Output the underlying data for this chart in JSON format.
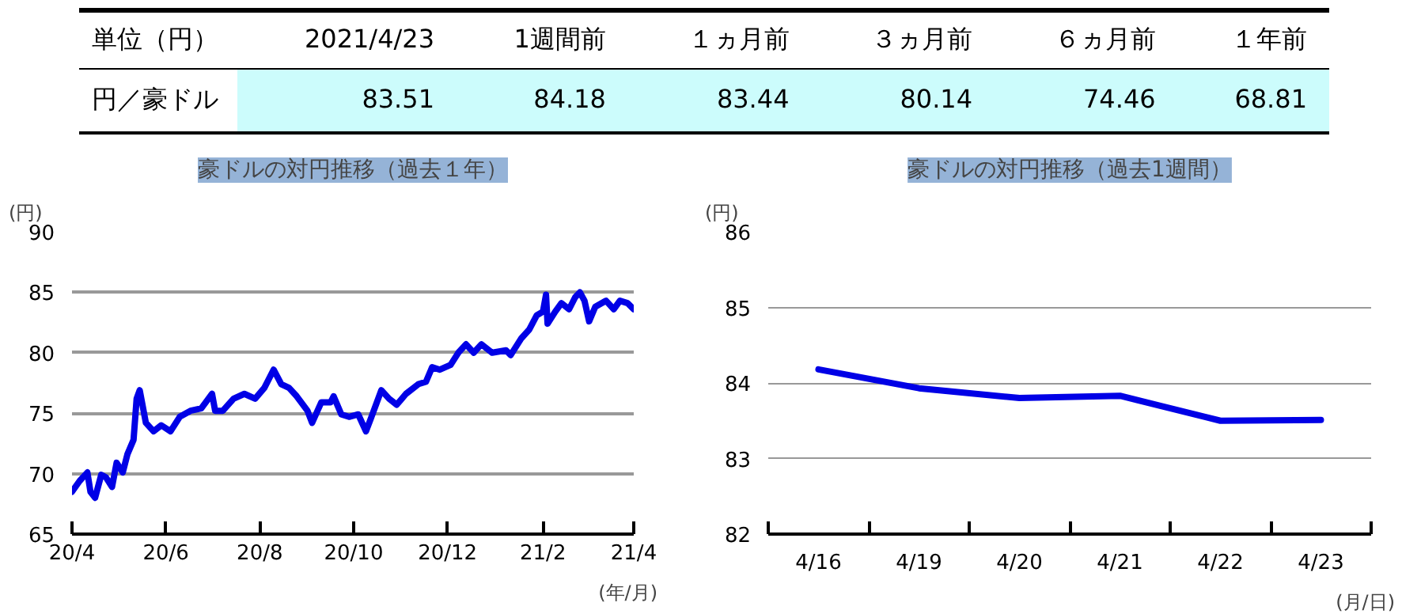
{
  "chart_data": [
    {
      "type": "other",
      "title": "単位（円）",
      "categories": [
        "2021/4/23",
        "1週間前",
        "１ヵ月前",
        "３ヵ月前",
        "６ヵ月前",
        "１年前"
      ],
      "y_categories": [
        "円／豪ドル"
      ],
      "cells": [
        [
          "83.51",
          "84.18",
          "83.44",
          "80.14",
          "74.46",
          "68.81"
        ]
      ]
    },
    {
      "type": "line",
      "title": "豪ドルの対円推移（過去１年）",
      "xlabel": "(年/月)",
      "ylabel": "(円)",
      "grid": "y",
      "xlim": [
        "2020-04-01",
        "2021-04-01"
      ],
      "ylim": [
        65,
        90
      ],
      "yticks": [
        65,
        70,
        75,
        80,
        85,
        90
      ],
      "xticks": [
        {
          "value": "2020-04-01",
          "label": "20/4"
        },
        {
          "value": "2020-06-01",
          "label": "20/6"
        },
        {
          "value": "2020-08-01",
          "label": "20/8"
        },
        {
          "value": "2020-10-01",
          "label": "20/10"
        },
        {
          "value": "2020-12-01",
          "label": "20/12"
        },
        {
          "value": "2021-02-01",
          "label": "21/2"
        },
        {
          "value": "2021-04-01",
          "label": "21/4"
        }
      ],
      "x": [
        "2020-04-01",
        "2020-04-06",
        "2020-04-11",
        "2020-04-13",
        "2020-04-16",
        "2020-04-20",
        "2020-04-23",
        "2020-04-27",
        "2020-04-30",
        "2020-05-04",
        "2020-05-07",
        "2020-05-11",
        "2020-05-13",
        "2020-05-15",
        "2020-05-19",
        "2020-05-24",
        "2020-05-29",
        "2020-06-04",
        "2020-06-10",
        "2020-06-17",
        "2020-06-24",
        "2020-07-01",
        "2020-07-03",
        "2020-07-08",
        "2020-07-15",
        "2020-07-22",
        "2020-07-29",
        "2020-08-04",
        "2020-08-10",
        "2020-08-15",
        "2020-08-20",
        "2020-08-25",
        "2020-09-01",
        "2020-09-04",
        "2020-09-10",
        "2020-09-16",
        "2020-09-18",
        "2020-09-23",
        "2020-09-28",
        "2020-10-04",
        "2020-10-09",
        "2020-10-12",
        "2020-10-19",
        "2020-10-24",
        "2020-10-29",
        "2020-11-04",
        "2020-11-12",
        "2020-11-17",
        "2020-11-21",
        "2020-11-26",
        "2020-12-03",
        "2020-12-08",
        "2020-12-13",
        "2020-12-18",
        "2020-12-23",
        "2020-12-30",
        "2021-01-08",
        "2021-01-11",
        "2021-01-18",
        "2021-01-23",
        "2021-01-28",
        "2021-02-01",
        "2021-02-03",
        "2021-02-04",
        "2021-02-09",
        "2021-02-13",
        "2021-02-18",
        "2021-02-22",
        "2021-02-25",
        "2021-02-28",
        "2021-03-03",
        "2021-03-07",
        "2021-03-14",
        "2021-03-19",
        "2021-03-23",
        "2021-03-28",
        "2021-04-01"
      ],
      "series": [
        {
          "color": "#0000e6",
          "values": [
            68.5,
            69.4,
            70.1,
            68.5,
            68.0,
            69.9,
            69.7,
            68.9,
            70.9,
            70.1,
            71.6,
            72.8,
            76.2,
            76.9,
            74.2,
            73.5,
            74.0,
            73.5,
            74.7,
            75.2,
            75.4,
            76.6,
            75.2,
            75.2,
            76.2,
            76.6,
            76.2,
            77.1,
            78.6,
            77.4,
            77.1,
            76.4,
            75.2,
            74.2,
            75.9,
            75.9,
            76.4,
            74.9,
            74.7,
            74.9,
            73.5,
            74.5,
            76.9,
            76.2,
            75.7,
            76.6,
            77.4,
            77.6,
            78.8,
            78.6,
            79.0,
            80.0,
            80.7,
            80.0,
            80.7,
            80.0,
            80.2,
            79.8,
            81.2,
            81.9,
            83.1,
            83.4,
            84.8,
            82.4,
            83.4,
            84.1,
            83.6,
            84.6,
            85.0,
            84.3,
            82.6,
            83.8,
            84.3,
            83.6,
            84.3,
            84.1,
            83.6
          ]
        }
      ]
    },
    {
      "type": "line",
      "title": "豪ドルの対円推移（過去1週間）",
      "xlabel": "(月/日)",
      "ylabel": "(円)",
      "grid": "y",
      "ylim": [
        82,
        86
      ],
      "yticks": [
        82,
        83,
        84,
        85,
        86
      ],
      "categories": [
        "4/16",
        "4/19",
        "4/20",
        "4/21",
        "4/22",
        "4/23"
      ],
      "series": [
        {
          "color": "#0000e6",
          "values": [
            84.18,
            83.93,
            83.8,
            83.83,
            83.5,
            83.51
          ]
        }
      ]
    }
  ]
}
